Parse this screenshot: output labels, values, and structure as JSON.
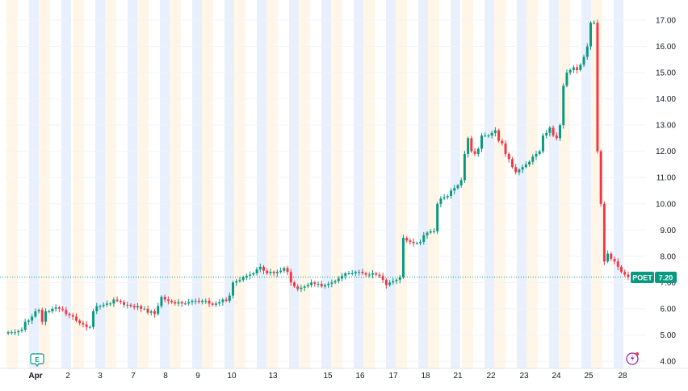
{
  "chart_data": {
    "type": "candlestick",
    "symbol": "POET",
    "last_price": 7.2,
    "last_price_label": "7.20",
    "ylim": [
      3.8,
      17.5
    ],
    "y_ticks": [
      "17.00",
      "16.00",
      "15.00",
      "14.00",
      "13.00",
      "12.00",
      "11.00",
      "10.00",
      "9.00",
      "8.00",
      "7.00",
      "6.00",
      "5.00",
      "4.00"
    ],
    "x_ticks": [
      "Apr",
      "2",
      "3",
      "7",
      "8",
      "9",
      "10",
      "13",
      "15",
      "16",
      "17",
      "18",
      "21",
      "22",
      "23",
      "24",
      "25",
      "28"
    ],
    "colors": {
      "up": "#089981",
      "down": "#f23645",
      "premarket": "#fff3e0",
      "afterhours": "#e3ecfd",
      "last_price": "#089981"
    },
    "earnings_marker": "E",
    "path": [
      5.1,
      5.1,
      5.1,
      5.15,
      5.2,
      5.5,
      5.55,
      5.7,
      5.9,
      5.95,
      5.5,
      5.9,
      5.9,
      6.0,
      6.05,
      6.0,
      5.95,
      5.8,
      5.75,
      5.7,
      5.55,
      5.45,
      5.4,
      5.3,
      5.3,
      5.9,
      6.1,
      6.1,
      6.15,
      6.2,
      6.2,
      6.35,
      6.3,
      6.25,
      6.15,
      6.15,
      6.1,
      6.05,
      6.1,
      6.0,
      6.0,
      5.85,
      5.9,
      5.8,
      6.1,
      6.45,
      6.35,
      6.3,
      6.25,
      6.2,
      6.25,
      6.2,
      6.2,
      6.25,
      6.3,
      6.3,
      6.25,
      6.3,
      6.3,
      6.2,
      6.15,
      6.2,
      6.25,
      6.35,
      6.3,
      6.5,
      7.0,
      7.05,
      7.1,
      7.2,
      7.25,
      7.3,
      7.35,
      7.5,
      7.6,
      7.45,
      7.35,
      7.4,
      7.35,
      7.4,
      7.45,
      7.55,
      7.4,
      7.0,
      6.85,
      6.75,
      6.8,
      6.85,
      6.9,
      7.0,
      6.95,
      6.95,
      6.85,
      6.9,
      6.95,
      7.0,
      7.05,
      7.15,
      7.25,
      7.35,
      7.35,
      7.35,
      7.4,
      7.4,
      7.35,
      7.3,
      7.3,
      7.35,
      7.3,
      7.25,
      7.1,
      6.9,
      7.0,
      7.05,
      7.1,
      7.2,
      8.7,
      8.6,
      8.55,
      8.5,
      8.5,
      8.55,
      8.8,
      8.9,
      8.95,
      8.95,
      10.0,
      10.2,
      10.25,
      10.3,
      10.5,
      10.6,
      10.7,
      10.9,
      11.9,
      12.5,
      12.0,
      11.9,
      12.1,
      12.6,
      12.6,
      12.6,
      12.7,
      12.8,
      12.4,
      12.3,
      11.9,
      11.7,
      11.4,
      11.2,
      11.3,
      11.4,
      11.5,
      11.6,
      11.8,
      11.9,
      12.0,
      12.6,
      12.7,
      12.9,
      12.6,
      12.5,
      13.0,
      14.5,
      15.0,
      15.1,
      15.2,
      15.1,
      15.3,
      15.6,
      16.0,
      16.9,
      16.9,
      12.0,
      10.0,
      7.8,
      8.1,
      7.9,
      7.8,
      7.6,
      7.4,
      7.3,
      7.2
    ]
  }
}
